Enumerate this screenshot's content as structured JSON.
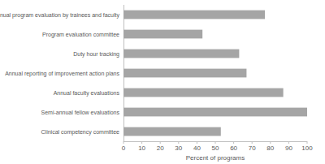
{
  "chart_data": {
    "type": "bar",
    "orientation": "horizontal",
    "categories": [
      "Annual program evaluation by trainees and faculty",
      "Program evaluation committee",
      "Duty hour tracking",
      "Annual reporting of improvement action plans",
      "Annual faculty evaluations",
      "Semi-annual fellow evaluations",
      "Clinical competency committee"
    ],
    "values": [
      77,
      43,
      63,
      67,
      87,
      100,
      53
    ],
    "color": "#a5a5a5",
    "x_label": "Percent of programs",
    "xlim": [
      0,
      100
    ],
    "xticks": [
      0,
      10,
      20,
      30,
      40,
      50,
      60,
      70,
      80,
      90,
      100
    ],
    "grid": false
  }
}
